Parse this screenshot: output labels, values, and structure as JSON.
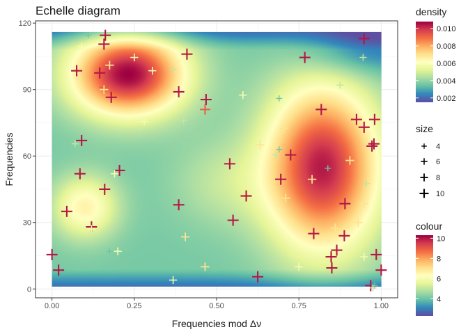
{
  "chart_data": {
    "type": "scatter",
    "title": "Echelle diagram",
    "xlabel": "Frequencies mod Δν",
    "ylabel": "Frequencies",
    "xlim": [
      -0.05,
      1.05
    ],
    "ylim": [
      -4,
      121
    ],
    "x_ticks": [
      0.0,
      0.25,
      0.5,
      0.75,
      1.0
    ],
    "x_tick_labels": [
      "0.00",
      "0.25",
      "0.50",
      "0.75",
      "1.00"
    ],
    "y_ticks": [
      0,
      30,
      60,
      90,
      120
    ],
    "y_tick_labels": [
      "0",
      "30",
      "60",
      "90",
      "120"
    ],
    "grid": true,
    "legend_position": "right",
    "density_background": {
      "x_range": [
        0,
        1
      ],
      "y_range": [
        1,
        116
      ],
      "colormap": [
        "#5E4FA2",
        "#3288BD",
        "#66C2A5",
        "#ABDDA4",
        "#E6F598",
        "#FFFFBF",
        "#FEE08B",
        "#FDAE61",
        "#F46D43",
        "#D53E4F",
        "#9E0142"
      ],
      "range": [
        0.0015,
        0.0108
      ],
      "peaks": [
        {
          "x": 0.23,
          "y": 97,
          "value": 0.0108
        },
        {
          "x": 0.82,
          "y": 55,
          "value": 0.0104
        },
        {
          "x": 0.52,
          "y": 48,
          "value": 0.0046
        },
        {
          "x": 0.1,
          "y": 37,
          "value": 0.0065
        },
        {
          "x": 0.95,
          "y": 108,
          "value": 0.002
        }
      ],
      "floor": 0.0036
    },
    "legends": {
      "density": {
        "title": "density",
        "labels": [
          "0.010",
          "0.008",
          "0.006",
          "0.004",
          "0.002"
        ],
        "values": [
          0.01,
          0.008,
          0.006,
          0.004,
          0.002
        ]
      },
      "size": {
        "title": "size",
        "labels": [
          "4",
          "6",
          "8",
          "10"
        ],
        "values": [
          4,
          6,
          8,
          10
        ]
      },
      "colour": {
        "title": "colour",
        "labels": [
          "10",
          "8",
          "6",
          "4"
        ],
        "values": [
          10,
          8,
          6,
          4
        ],
        "range": [
          2.3,
          10.3
        ]
      }
    },
    "points": [
      {
        "x": 0.162,
        "y": 114.5,
        "c": 10
      },
      {
        "x": 0.11,
        "y": 114.5,
        "c": 4
      },
      {
        "x": 0.158,
        "y": 110.5,
        "c": 10
      },
      {
        "x": 0.09,
        "y": 109.5,
        "c": 6
      },
      {
        "x": 0.25,
        "y": 104.5,
        "c": 6
      },
      {
        "x": 0.41,
        "y": 106.0,
        "c": 10
      },
      {
        "x": 0.948,
        "y": 113.0,
        "c": 10
      },
      {
        "x": 0.945,
        "y": 104.5,
        "c": 5
      },
      {
        "x": 0.768,
        "y": 104.5,
        "c": 10
      },
      {
        "x": 0.075,
        "y": 98.5,
        "c": 10
      },
      {
        "x": 0.175,
        "y": 101.0,
        "c": 7
      },
      {
        "x": 0.145,
        "y": 97.5,
        "c": 10
      },
      {
        "x": 0.305,
        "y": 98.5,
        "c": 6
      },
      {
        "x": 0.368,
        "y": 99.0,
        "c": 5
      },
      {
        "x": 0.16,
        "y": 91.0,
        "c": 9
      },
      {
        "x": 0.158,
        "y": 90.0,
        "c": 7
      },
      {
        "x": 0.18,
        "y": 86.5,
        "c": 10
      },
      {
        "x": 0.385,
        "y": 89.0,
        "c": 10
      },
      {
        "x": 0.468,
        "y": 85.5,
        "c": 10
      },
      {
        "x": 0.58,
        "y": 87.5,
        "c": 6
      },
      {
        "x": 0.69,
        "y": 86.0,
        "c": 4
      },
      {
        "x": 0.875,
        "y": 92.0,
        "c": 5
      },
      {
        "x": 0.465,
        "y": 81.0,
        "c": 9
      },
      {
        "x": 0.818,
        "y": 81.0,
        "c": 10
      },
      {
        "x": 0.28,
        "y": 75.5,
        "c": 6
      },
      {
        "x": 0.4,
        "y": 76.0,
        "c": 5
      },
      {
        "x": 0.925,
        "y": 76.5,
        "c": 10
      },
      {
        "x": 0.98,
        "y": 76.5,
        "c": 10
      },
      {
        "x": 0.705,
        "y": 72.5,
        "c": 7
      },
      {
        "x": 0.948,
        "y": 73.0,
        "c": 10
      },
      {
        "x": 0.09,
        "y": 67.0,
        "c": 10
      },
      {
        "x": 0.07,
        "y": 65.5,
        "c": 5
      },
      {
        "x": 0.632,
        "y": 65.0,
        "c": 7
      },
      {
        "x": 0.978,
        "y": 65.5,
        "c": 10
      },
      {
        "x": 0.972,
        "y": 64.5,
        "c": 10
      },
      {
        "x": 0.69,
        "y": 63.0,
        "c": 4
      },
      {
        "x": 0.68,
        "y": 60.5,
        "c": 5
      },
      {
        "x": 0.725,
        "y": 60.5,
        "c": 10
      },
      {
        "x": 0.905,
        "y": 58.0,
        "c": 7
      },
      {
        "x": 0.54,
        "y": 56.5,
        "c": 10
      },
      {
        "x": 0.838,
        "y": 54.5,
        "c": 4
      },
      {
        "x": 0.205,
        "y": 53.5,
        "c": 10
      },
      {
        "x": 0.085,
        "y": 52.0,
        "c": 10
      },
      {
        "x": 0.19,
        "y": 52.0,
        "c": 6
      },
      {
        "x": 0.695,
        "y": 49.5,
        "c": 10
      },
      {
        "x": 0.79,
        "y": 49.5,
        "c": 7
      },
      {
        "x": 0.955,
        "y": 47.5,
        "c": 5
      },
      {
        "x": 0.16,
        "y": 45.0,
        "c": 10
      },
      {
        "x": 0.59,
        "y": 42.0,
        "c": 10
      },
      {
        "x": 0.71,
        "y": 41.0,
        "c": 7
      },
      {
        "x": 0.89,
        "y": 38.5,
        "c": 10
      },
      {
        "x": 0.948,
        "y": 38.5,
        "c": 7
      },
      {
        "x": 0.385,
        "y": 38.0,
        "c": 10
      },
      {
        "x": 0.045,
        "y": 35.0,
        "c": 10
      },
      {
        "x": 0.55,
        "y": 31.0,
        "c": 10
      },
      {
        "x": 0.93,
        "y": 30.0,
        "c": 7
      },
      {
        "x": 0.12,
        "y": 28.0,
        "c": 10
      },
      {
        "x": 0.12,
        "y": 27.0,
        "c": 6
      },
      {
        "x": 0.86,
        "y": 27.5,
        "c": 7
      },
      {
        "x": 0.795,
        "y": 25.0,
        "c": 10
      },
      {
        "x": 0.888,
        "y": 24.0,
        "c": 10
      },
      {
        "x": 0.405,
        "y": 23.5,
        "c": 7
      },
      {
        "x": 0.865,
        "y": 17.5,
        "c": 10
      },
      {
        "x": 0.175,
        "y": 17.0,
        "c": 4
      },
      {
        "x": 0.2,
        "y": 17.0,
        "c": 6
      },
      {
        "x": 0.0,
        "y": 15.5,
        "c": 10
      },
      {
        "x": 0.985,
        "y": 15.5,
        "c": 10
      },
      {
        "x": 0.848,
        "y": 14.5,
        "c": 10
      },
      {
        "x": 0.948,
        "y": 14.5,
        "c": 6
      },
      {
        "x": 0.465,
        "y": 10.0,
        "c": 7
      },
      {
        "x": 0.75,
        "y": 10.0,
        "c": 6
      },
      {
        "x": 0.85,
        "y": 9.5,
        "c": 10
      },
      {
        "x": 0.02,
        "y": 8.5,
        "c": 10
      },
      {
        "x": 1.0,
        "y": 8.5,
        "c": 10
      },
      {
        "x": 0.625,
        "y": 5.5,
        "c": 10
      },
      {
        "x": 0.368,
        "y": 4.0,
        "c": 6
      },
      {
        "x": 0.968,
        "y": 1.5,
        "c": 10
      },
      {
        "x": 0.98,
        "y": 1.5,
        "c": 4
      },
      {
        "x": 0.975,
        "y": 0.5,
        "c": 5
      }
    ]
  }
}
